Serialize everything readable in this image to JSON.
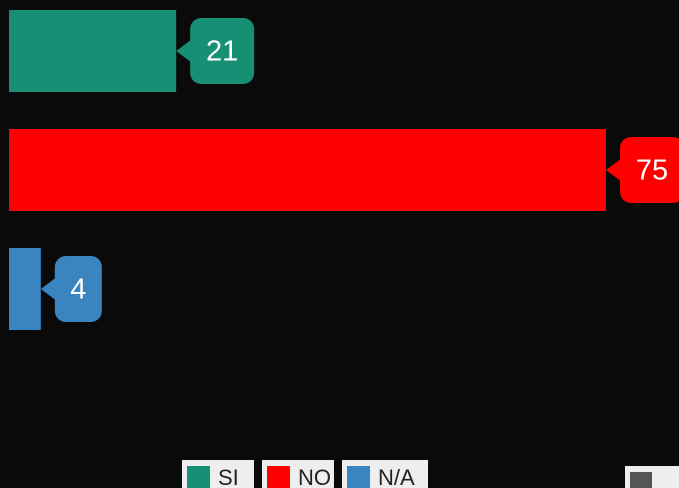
{
  "chart_data": {
    "type": "bar",
    "orientation": "horizontal",
    "categories": [
      "SI",
      "NO",
      "N/A"
    ],
    "values": [
      21,
      75,
      4
    ],
    "colors": [
      "#168f74",
      "#ff0000",
      "#3a84c0"
    ],
    "legend": "bottom"
  }
}
